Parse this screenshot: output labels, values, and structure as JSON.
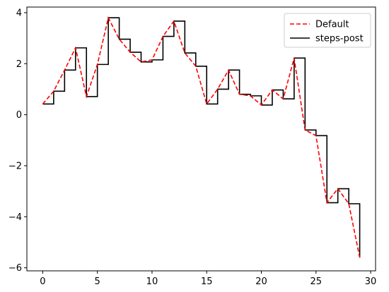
{
  "chart_data": {
    "type": "line",
    "title": "",
    "xlabel": "",
    "ylabel": "",
    "xlim": [
      -1.45,
      30.45
    ],
    "ylim": [
      -6.12,
      4.22
    ],
    "xticks": [
      0,
      5,
      10,
      15,
      20,
      25,
      30
    ],
    "xtick_labels": [
      "0",
      "5",
      "10",
      "15",
      "20",
      "25",
      "30"
    ],
    "yticks": [
      -6,
      -4,
      -2,
      0,
      2,
      4
    ],
    "ytick_labels": [
      "−6",
      "−4",
      "−2",
      "0",
      "2",
      "4"
    ],
    "grid": false,
    "legend_position": "top-right",
    "x": [
      0,
      1,
      2,
      3,
      4,
      5,
      6,
      7,
      8,
      9,
      10,
      11,
      12,
      13,
      14,
      15,
      16,
      17,
      18,
      19,
      20,
      21,
      22,
      23,
      24,
      25,
      26,
      27,
      28,
      29
    ],
    "series": [
      {
        "name": "Default",
        "style": "dashed",
        "color": "#ff0000",
        "values": [
          0.42,
          0.92,
          1.75,
          2.62,
          0.71,
          1.97,
          3.8,
          2.96,
          2.45,
          2.07,
          2.15,
          3.07,
          3.67,
          2.42,
          1.9,
          0.42,
          1.0,
          1.75,
          0.8,
          0.74,
          0.38,
          0.97,
          0.62,
          2.22,
          -0.6,
          -0.82,
          -3.45,
          -2.9,
          -3.49,
          -5.6
        ]
      },
      {
        "name": "steps-post",
        "style": "solid",
        "color": "#000000",
        "drawstyle": "steps-post",
        "values": [
          0.42,
          0.92,
          1.75,
          2.62,
          0.71,
          1.97,
          3.8,
          2.96,
          2.45,
          2.07,
          2.15,
          3.07,
          3.67,
          2.42,
          1.9,
          0.42,
          1.0,
          1.75,
          0.8,
          0.74,
          0.38,
          0.97,
          0.62,
          2.22,
          -0.6,
          -0.82,
          -3.45,
          -2.9,
          -3.49,
          -5.6
        ]
      }
    ]
  }
}
